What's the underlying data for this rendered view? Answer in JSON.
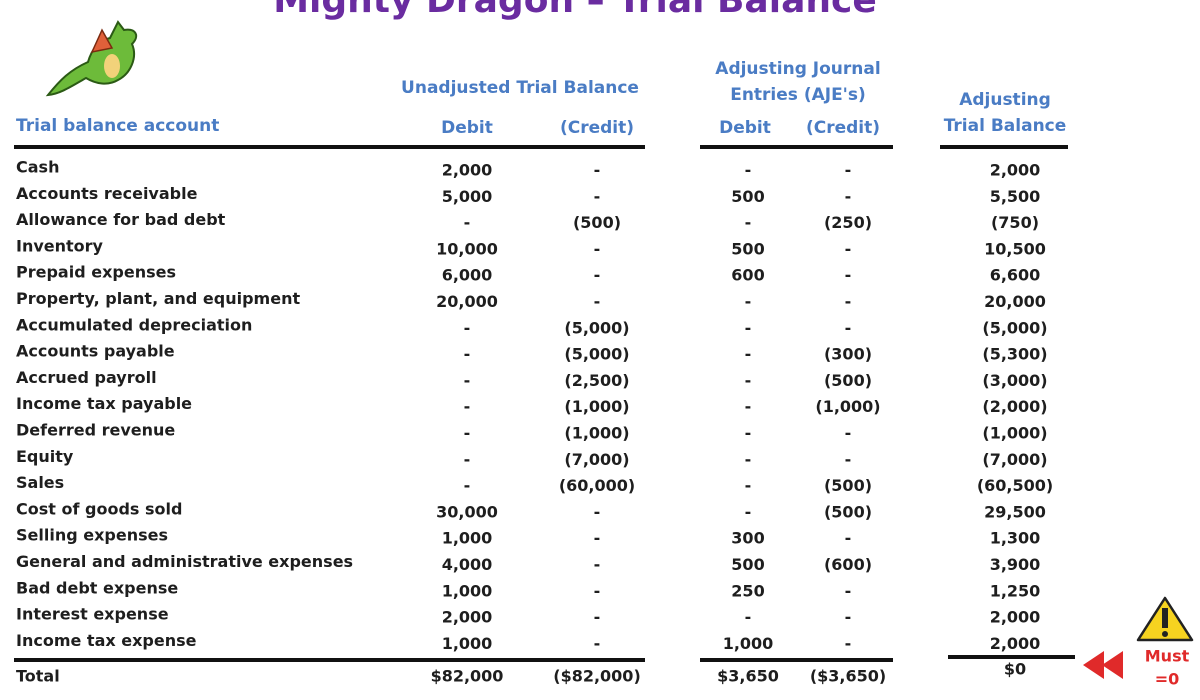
{
  "title": "Mighty Dragon – Trial Balance",
  "header": {
    "unadjusted": "Unadjusted Trial Balance",
    "aje": [
      "Adjusting Journal",
      "Entries (AJE's)"
    ],
    "adjusted": [
      "Adjusting",
      "Trial Balance"
    ],
    "columns": [
      "Trial balance account",
      "Debit",
      "(Credit)",
      "Debit",
      "(Credit)"
    ]
  },
  "rows": [
    [
      "Cash",
      "2,000",
      "-",
      "-",
      "-",
      "2,000"
    ],
    [
      "Accounts receivable",
      "5,000",
      "-",
      "500",
      "-",
      "5,500"
    ],
    [
      "Allowance for bad debt",
      "-",
      "(500)",
      "-",
      "(250)",
      "(750)"
    ],
    [
      "Inventory",
      "10,000",
      "-",
      "500",
      "-",
      "10,500"
    ],
    [
      "Prepaid expenses",
      "6,000",
      "-",
      "600",
      "-",
      "6,600"
    ],
    [
      "Property, plant, and equipment",
      "20,000",
      "-",
      "-",
      "-",
      "20,000"
    ],
    [
      "Accumulated depreciation",
      "-",
      "(5,000)",
      "-",
      "-",
      "(5,000)"
    ],
    [
      "Accounts payable",
      "-",
      "(5,000)",
      "-",
      "(300)",
      "(5,300)"
    ],
    [
      "Accrued payroll",
      "-",
      "(2,500)",
      "-",
      "(500)",
      "(3,000)"
    ],
    [
      "Income tax payable",
      "-",
      "(1,000)",
      "-",
      "(1,000)",
      "(2,000)"
    ],
    [
      "Deferred revenue",
      "-",
      "(1,000)",
      "-",
      "-",
      "(1,000)"
    ],
    [
      "Equity",
      "-",
      "(7,000)",
      "-",
      "-",
      "(7,000)"
    ],
    [
      "Sales",
      "-",
      "(60,000)",
      "-",
      "(500)",
      "(60,500)"
    ],
    [
      "Cost of goods sold",
      "30,000",
      "-",
      "-",
      "(500)",
      "29,500"
    ],
    [
      "Selling expenses",
      "1,000",
      "-",
      "300",
      "-",
      "1,300"
    ],
    [
      "General and administrative expenses",
      "4,000",
      "-",
      "500",
      "(600)",
      "3,900"
    ],
    [
      "Bad debt expense",
      "1,000",
      "-",
      "250",
      "-",
      "1,250"
    ],
    [
      "Interest expense",
      "2,000",
      "-",
      "-",
      "-",
      "2,000"
    ],
    [
      "Income tax expense",
      "1,000",
      "-",
      "1,000",
      "-",
      "2,000"
    ]
  ],
  "total": [
    "Total",
    "$82,000",
    "($82,000)",
    "$3,650",
    "($3,650)",
    "$0"
  ],
  "warning": [
    "Must",
    "=0"
  ]
}
